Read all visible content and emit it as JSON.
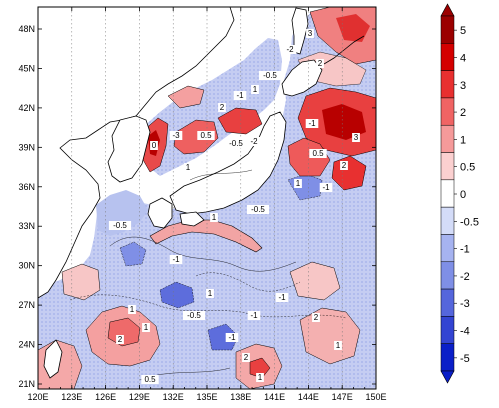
{
  "map": {
    "lon_labels": [
      "120E",
      "123E",
      "126E",
      "129E",
      "132E",
      "135E",
      "138E",
      "141E",
      "144E",
      "147E",
      "150E"
    ],
    "lat_labels": [
      "48N",
      "45N",
      "42N",
      "39N",
      "36N",
      "33N",
      "30N",
      "27N",
      "24N",
      "21N"
    ],
    "contour_labels": [
      "3",
      "2",
      "-0.5",
      "1",
      "2",
      "-1",
      "-2",
      "0",
      "-3",
      "0.5",
      "-0.5",
      "1",
      "-2",
      "-1",
      "3",
      "0.5",
      "2",
      "1",
      "-1",
      "-0.5",
      "-1",
      "1",
      "-0.5",
      "-1",
      "1",
      "1",
      "2",
      "-1",
      "2",
      "1",
      "0.5",
      "1",
      "-0.5",
      "-1",
      "2",
      "1"
    ]
  },
  "colorbar": {
    "labels": [
      "5",
      "4",
      "3",
      "2",
      "1",
      "0.5",
      "0",
      "-0.5",
      "-1",
      "-2",
      "-3",
      "-4",
      "-5"
    ],
    "colors": [
      "#9b0000",
      "#d40000",
      "#e83030",
      "#f06464",
      "#f59a9a",
      "#fbd0d0",
      "#ffffff",
      "#d4dcf8",
      "#a6b3f0",
      "#7f8fe6",
      "#5566dc",
      "#3344d2",
      "#0a1fc8"
    ]
  }
}
